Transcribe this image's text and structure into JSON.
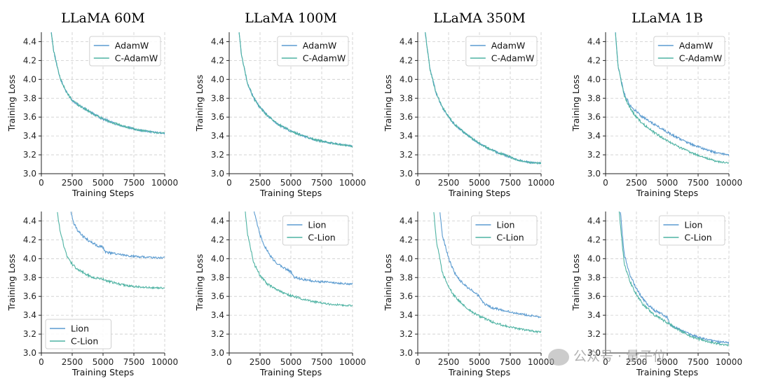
{
  "figure": {
    "column_titles": [
      "LLaMA 60M",
      "LLaMA 100M",
      "LLaMA 350M",
      "LLaMA 1B"
    ],
    "xlabel": "Training Steps",
    "ylabel": "Training Loss",
    "watermark": "公众号 · 量子位"
  },
  "colors": {
    "base": "#5b9bd0",
    "cautious": "#4fb3a3"
  },
  "chart_data": [
    {
      "type": "line",
      "title": "LLaMA 60M",
      "xlabel": "Training Steps",
      "ylabel": "Training Loss",
      "xlim": [
        0,
        10000
      ],
      "ylim": [
        3.0,
        4.5
      ],
      "xticks": [
        0,
        2500,
        5000,
        7500,
        10000
      ],
      "xtick_labels": [
        "0",
        "2500",
        "5000",
        "7500",
        "10000"
      ],
      "yticks": [
        3.0,
        3.2,
        3.4,
        3.6,
        3.8,
        4.0,
        4.2,
        4.4
      ],
      "ytick_labels": [
        "3.0",
        "3.2",
        "3.4",
        "3.6",
        "3.8",
        "4.0",
        "4.2",
        "4.4"
      ],
      "legend": "top-right",
      "grid": true,
      "series": [
        {
          "name": "AdamW",
          "x": [
            800,
            1000,
            1500,
            2000,
            2500,
            3000,
            3500,
            4000,
            5000,
            6000,
            7000,
            8000,
            9000,
            10000
          ],
          "values": [
            4.5,
            4.3,
            4.02,
            3.87,
            3.78,
            3.73,
            3.69,
            3.65,
            3.58,
            3.53,
            3.49,
            3.46,
            3.44,
            3.43
          ]
        },
        {
          "name": "C-AdamW",
          "x": [
            800,
            1000,
            1500,
            2000,
            2500,
            3000,
            3500,
            4000,
            5000,
            6000,
            7000,
            8000,
            9000,
            10000
          ],
          "values": [
            4.5,
            4.3,
            4.02,
            3.87,
            3.78,
            3.73,
            3.69,
            3.65,
            3.58,
            3.53,
            3.49,
            3.46,
            3.44,
            3.43
          ]
        }
      ]
    },
    {
      "type": "line",
      "title": "LLaMA 100M",
      "xlabel": "Training Steps",
      "ylabel": "Training Loss",
      "xlim": [
        0,
        10000
      ],
      "ylim": [
        3.0,
        4.5
      ],
      "xticks": [
        0,
        2500,
        5000,
        7500,
        10000
      ],
      "xtick_labels": [
        "0",
        "2500",
        "5000",
        "7500",
        "10000"
      ],
      "yticks": [
        3.0,
        3.2,
        3.4,
        3.6,
        3.8,
        4.0,
        4.2,
        4.4
      ],
      "ytick_labels": [
        "3.0",
        "3.2",
        "3.4",
        "3.6",
        "3.8",
        "4.0",
        "4.2",
        "4.4"
      ],
      "legend": "top-right",
      "grid": true,
      "series": [
        {
          "name": "AdamW",
          "x": [
            800,
            1000,
            1500,
            2000,
            2500,
            3000,
            3500,
            4000,
            5000,
            6000,
            7000,
            8000,
            9000,
            10000
          ],
          "values": [
            4.5,
            4.25,
            3.95,
            3.8,
            3.7,
            3.63,
            3.57,
            3.52,
            3.45,
            3.4,
            3.36,
            3.33,
            3.31,
            3.29
          ]
        },
        {
          "name": "C-AdamW",
          "x": [
            800,
            1000,
            1500,
            2000,
            2500,
            3000,
            3500,
            4000,
            5000,
            6000,
            7000,
            8000,
            9000,
            10000
          ],
          "values": [
            4.5,
            4.25,
            3.95,
            3.8,
            3.7,
            3.63,
            3.57,
            3.52,
            3.45,
            3.4,
            3.36,
            3.33,
            3.31,
            3.29
          ]
        }
      ]
    },
    {
      "type": "line",
      "title": "LLaMA 350M",
      "xlabel": "Training Steps",
      "ylabel": "Training Loss",
      "xlim": [
        0,
        10000
      ],
      "ylim": [
        3.0,
        4.5
      ],
      "xticks": [
        0,
        2500,
        5000,
        7500,
        10000
      ],
      "xtick_labels": [
        "0",
        "2500",
        "5000",
        "7500",
        "10000"
      ],
      "yticks": [
        3.0,
        3.2,
        3.4,
        3.6,
        3.8,
        4.0,
        4.2,
        4.4
      ],
      "ytick_labels": [
        "3.0",
        "3.2",
        "3.4",
        "3.6",
        "3.8",
        "4.0",
        "4.2",
        "4.4"
      ],
      "legend": "top-right",
      "grid": true,
      "series": [
        {
          "name": "AdamW",
          "x": [
            600,
            1000,
            1500,
            2000,
            2500,
            3000,
            4000,
            5000,
            6000,
            7000,
            8000,
            9000,
            10000
          ],
          "values": [
            4.5,
            4.1,
            3.85,
            3.7,
            3.6,
            3.52,
            3.41,
            3.32,
            3.25,
            3.2,
            3.15,
            3.12,
            3.11
          ]
        },
        {
          "name": "C-AdamW",
          "x": [
            600,
            1000,
            1500,
            2000,
            2500,
            3000,
            4000,
            5000,
            6000,
            7000,
            8000,
            9000,
            10000
          ],
          "values": [
            4.5,
            4.1,
            3.85,
            3.7,
            3.6,
            3.52,
            3.41,
            3.32,
            3.25,
            3.2,
            3.15,
            3.12,
            3.11
          ]
        }
      ]
    },
    {
      "type": "line",
      "title": "LLaMA 1B",
      "xlabel": "Training Steps",
      "ylabel": "Training Loss",
      "xlim": [
        0,
        10000
      ],
      "ylim": [
        3.0,
        4.5
      ],
      "xticks": [
        0,
        2500,
        5000,
        7500,
        10000
      ],
      "xtick_labels": [
        "0",
        "2500",
        "5000",
        "7500",
        "10000"
      ],
      "yticks": [
        3.0,
        3.2,
        3.4,
        3.6,
        3.8,
        4.0,
        4.2,
        4.4
      ],
      "ytick_labels": [
        "3.0",
        "3.2",
        "3.4",
        "3.6",
        "3.8",
        "4.0",
        "4.2",
        "4.4"
      ],
      "legend": "top-right",
      "grid": true,
      "series": [
        {
          "name": "AdamW",
          "x": [
            800,
            1000,
            1500,
            2000,
            2500,
            3000,
            4000,
            5000,
            6000,
            7000,
            8000,
            9000,
            10000
          ],
          "values": [
            4.5,
            4.15,
            3.85,
            3.72,
            3.66,
            3.6,
            3.52,
            3.44,
            3.37,
            3.31,
            3.26,
            3.22,
            3.2
          ]
        },
        {
          "name": "C-AdamW",
          "x": [
            800,
            1000,
            1500,
            2000,
            2500,
            3000,
            4000,
            5000,
            6000,
            7000,
            8000,
            9000,
            10000
          ],
          "values": [
            4.5,
            4.15,
            3.83,
            3.69,
            3.6,
            3.53,
            3.43,
            3.35,
            3.28,
            3.22,
            3.17,
            3.13,
            3.11
          ]
        }
      ]
    },
    {
      "type": "line",
      "title": "",
      "xlabel": "Training Steps",
      "ylabel": "Training Loss",
      "xlim": [
        0,
        10000
      ],
      "ylim": [
        3.0,
        4.5
      ],
      "xticks": [
        0,
        2500,
        5000,
        7500,
        10000
      ],
      "xtick_labels": [
        "0",
        "2500",
        "5000",
        "7500",
        "10000"
      ],
      "yticks": [
        3.0,
        3.2,
        3.4,
        3.6,
        3.8,
        4.0,
        4.2,
        4.4
      ],
      "ytick_labels": [
        "3.0",
        "3.2",
        "3.4",
        "3.6",
        "3.8",
        "4.0",
        "4.2",
        "4.4"
      ],
      "legend": "bottom-left",
      "grid": true,
      "series": [
        {
          "name": "Lion",
          "x": [
            2400,
            2600,
            3000,
            3500,
            4000,
            4500,
            5000,
            5200,
            6000,
            7000,
            8000,
            9000,
            10000
          ],
          "values": [
            4.5,
            4.38,
            4.29,
            4.22,
            4.18,
            4.14,
            4.12,
            4.07,
            4.05,
            4.03,
            4.02,
            4.01,
            4.01
          ]
        },
        {
          "name": "C-Lion",
          "x": [
            1300,
            1500,
            2000,
            2500,
            3000,
            4000,
            5000,
            6000,
            7000,
            8000,
            9000,
            10000
          ],
          "values": [
            4.5,
            4.3,
            4.05,
            3.94,
            3.88,
            3.81,
            3.78,
            3.74,
            3.71,
            3.7,
            3.69,
            3.69
          ]
        }
      ]
    },
    {
      "type": "line",
      "title": "",
      "xlabel": "Training Steps",
      "ylabel": "Training Loss",
      "xlim": [
        0,
        10000
      ],
      "ylim": [
        3.0,
        4.5
      ],
      "xticks": [
        0,
        2500,
        5000,
        7500,
        10000
      ],
      "xtick_labels": [
        "0",
        "2500",
        "5000",
        "7500",
        "10000"
      ],
      "yticks": [
        3.0,
        3.2,
        3.4,
        3.6,
        3.8,
        4.0,
        4.2,
        4.4
      ],
      "ytick_labels": [
        "3.0",
        "3.2",
        "3.4",
        "3.6",
        "3.8",
        "4.0",
        "4.2",
        "4.4"
      ],
      "legend": "top-right",
      "grid": true,
      "series": [
        {
          "name": "Lion",
          "x": [
            2000,
            2500,
            3000,
            3500,
            4000,
            4500,
            5000,
            5300,
            6000,
            7000,
            8000,
            9000,
            10000
          ],
          "values": [
            4.5,
            4.25,
            4.1,
            4.0,
            3.94,
            3.9,
            3.86,
            3.8,
            3.78,
            3.76,
            3.75,
            3.74,
            3.73
          ]
        },
        {
          "name": "C-Lion",
          "x": [
            1300,
            1500,
            2000,
            2500,
            3000,
            4000,
            5000,
            6000,
            7000,
            8000,
            9000,
            10000
          ],
          "values": [
            4.5,
            4.25,
            3.95,
            3.82,
            3.74,
            3.66,
            3.61,
            3.57,
            3.54,
            3.52,
            3.51,
            3.5
          ]
        }
      ]
    },
    {
      "type": "line",
      "title": "",
      "xlabel": "Training Steps",
      "ylabel": "Training Loss",
      "xlim": [
        0,
        10000
      ],
      "ylim": [
        3.0,
        4.5
      ],
      "xticks": [
        0,
        2500,
        5000,
        7500,
        10000
      ],
      "xtick_labels": [
        "0",
        "2500",
        "5000",
        "7500",
        "10000"
      ],
      "yticks": [
        3.0,
        3.2,
        3.4,
        3.6,
        3.8,
        4.0,
        4.2,
        4.4
      ],
      "ytick_labels": [
        "3.0",
        "3.2",
        "3.4",
        "3.6",
        "3.8",
        "4.0",
        "4.2",
        "4.4"
      ],
      "legend": "top-right",
      "grid": true,
      "series": [
        {
          "name": "Lion",
          "x": [
            1800,
            2000,
            2500,
            3000,
            3500,
            4000,
            4500,
            5000,
            5300,
            6000,
            7000,
            8000,
            9000,
            10000
          ],
          "values": [
            4.5,
            4.25,
            4.0,
            3.85,
            3.76,
            3.7,
            3.65,
            3.6,
            3.53,
            3.48,
            3.45,
            3.42,
            3.4,
            3.38
          ]
        },
        {
          "name": "C-Lion",
          "x": [
            1300,
            1500,
            2000,
            2500,
            3000,
            4000,
            5000,
            6000,
            7000,
            8000,
            9000,
            10000
          ],
          "values": [
            4.5,
            4.2,
            3.85,
            3.7,
            3.6,
            3.47,
            3.39,
            3.33,
            3.29,
            3.26,
            3.24,
            3.22
          ]
        }
      ]
    },
    {
      "type": "line",
      "title": "",
      "xlabel": "Training Steps",
      "ylabel": "Training Loss",
      "xlim": [
        0,
        10000
      ],
      "ylim": [
        3.0,
        4.5
      ],
      "xticks": [
        0,
        2500,
        5000,
        7500,
        10000
      ],
      "xtick_labels": [
        "0",
        "2500",
        "5000",
        "7500",
        "10000"
      ],
      "yticks": [
        3.0,
        3.2,
        3.4,
        3.6,
        3.8,
        4.0,
        4.2,
        4.4
      ],
      "ytick_labels": [
        "3.0",
        "3.2",
        "3.4",
        "3.6",
        "3.8",
        "4.0",
        "4.2",
        "4.4"
      ],
      "legend": "top-right",
      "grid": true,
      "series": [
        {
          "name": "Lion",
          "x": [
            1200,
            1500,
            2000,
            2500,
            3000,
            3500,
            4000,
            4500,
            5000,
            5200,
            6000,
            7000,
            8000,
            9000,
            10000
          ],
          "values": [
            4.5,
            4.05,
            3.82,
            3.68,
            3.58,
            3.5,
            3.45,
            3.42,
            3.38,
            3.3,
            3.25,
            3.19,
            3.15,
            3.12,
            3.11
          ]
        },
        {
          "name": "C-Lion",
          "x": [
            1100,
            1500,
            2000,
            2500,
            3000,
            4000,
            5000,
            6000,
            7000,
            8000,
            9000,
            10000
          ],
          "values": [
            4.5,
            3.95,
            3.75,
            3.62,
            3.52,
            3.4,
            3.32,
            3.24,
            3.17,
            3.13,
            3.1,
            3.08
          ]
        }
      ]
    }
  ]
}
